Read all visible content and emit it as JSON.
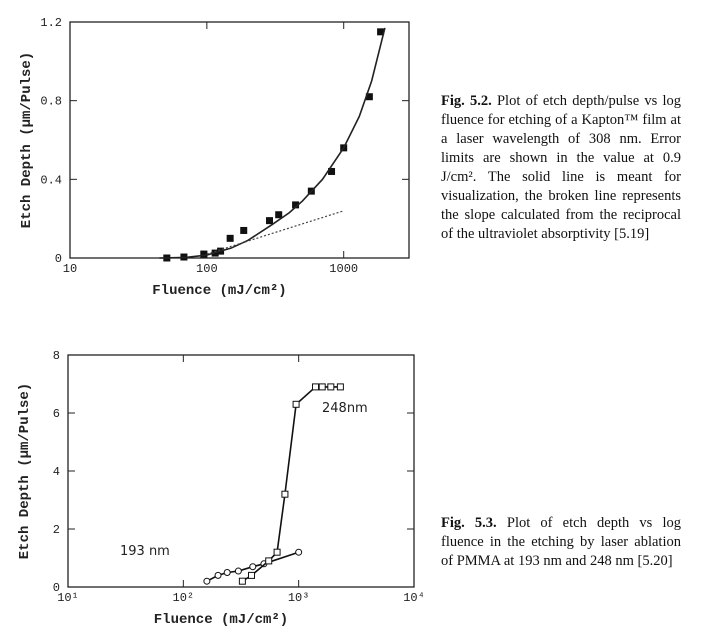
{
  "chart_data": [
    {
      "type": "scatter",
      "log_x": true,
      "xlabel": "Fluence (mJ/cm²)",
      "ylabel": "Etch Depth (μm/Pulse)",
      "xlim": [
        10,
        3000
      ],
      "ylim": [
        0,
        1.2
      ],
      "xticks": [
        10,
        100,
        1000
      ],
      "yticks": [
        0,
        0.4,
        0.8,
        1.2
      ],
      "series": [
        {
          "color": "#111",
          "marker": "filled-square",
          "line": "none",
          "x": [
            51,
            68,
            95,
            115,
            126,
            148,
            186,
            287,
            335,
            445,
            580,
            815,
            1000,
            1540,
            1860
          ],
          "values": [
            0,
            0.005,
            0.02,
            0.025,
            0.035,
            0.1,
            0.14,
            0.19,
            0.22,
            0.27,
            0.34,
            0.44,
            0.56,
            0.82,
            1.15
          ]
        },
        {
          "color": "#222",
          "marker": "none",
          "line": "solid",
          "x": [
            45,
            70,
            100,
            150,
            200,
            300,
            400,
            500,
            700,
            1000,
            1300,
            1600,
            2000
          ],
          "values": [
            0,
            0.003,
            0.015,
            0.05,
            0.09,
            0.17,
            0.23,
            0.29,
            0.4,
            0.56,
            0.72,
            0.9,
            1.17
          ]
        },
        {
          "color": "#444",
          "marker": "none",
          "line": "dotted",
          "x": [
            100,
            1000
          ],
          "values": [
            0.02,
            0.24
          ]
        }
      ]
    },
    {
      "type": "scatter",
      "log_x": true,
      "xlabel": "Fluence (mJ/cm²)",
      "ylabel": "Etch Depth (μm/Pulse)",
      "xlim": [
        10,
        10000
      ],
      "ylim": [
        0,
        8
      ],
      "xticks": [
        {
          "value": 10,
          "label": "10¹"
        },
        {
          "value": 100,
          "label": "10²"
        },
        {
          "value": 1000,
          "label": "10³"
        },
        {
          "value": 10000,
          "label": "10⁴"
        }
      ],
      "yticks": [
        0,
        2,
        4,
        6,
        8
      ],
      "series": [
        {
          "name": "193 nm",
          "color": "#111",
          "marker": "open-circle",
          "line": "solid",
          "x": [
            160,
            200,
            240,
            300,
            400,
            500,
            1000
          ],
          "values": [
            0.2,
            0.4,
            0.5,
            0.55,
            0.7,
            0.8,
            1.2
          ]
        },
        {
          "name": "248nm",
          "color": "#111",
          "marker": "open-square",
          "line": "solid",
          "x": [
            325,
            390,
            550,
            650,
            760,
            950,
            1400,
            1600,
            1900,
            2300
          ],
          "values": [
            0.2,
            0.4,
            0.9,
            1.2,
            3.2,
            6.3,
            6.9,
            6.9,
            6.9,
            6.9
          ]
        }
      ]
    }
  ],
  "captions": [
    {
      "label": "Fig. 5.2.",
      "text": "Plot of etch depth/pulse vs log fluence for etching of a Kapton™ film at a laser wavelength of 308 nm. Error limits are shown in the value at 0.9 J/cm². The solid line is meant for visualization, the broken line represents the slope calculated from the reciprocal of the ultraviolet absorptivity [5.19]"
    },
    {
      "label": "Fig. 5.3.",
      "text": "Plot of etch depth vs log fluence in the etching by laser ablation of PMMA at 193 nm and 248 nm [5.20]"
    }
  ]
}
